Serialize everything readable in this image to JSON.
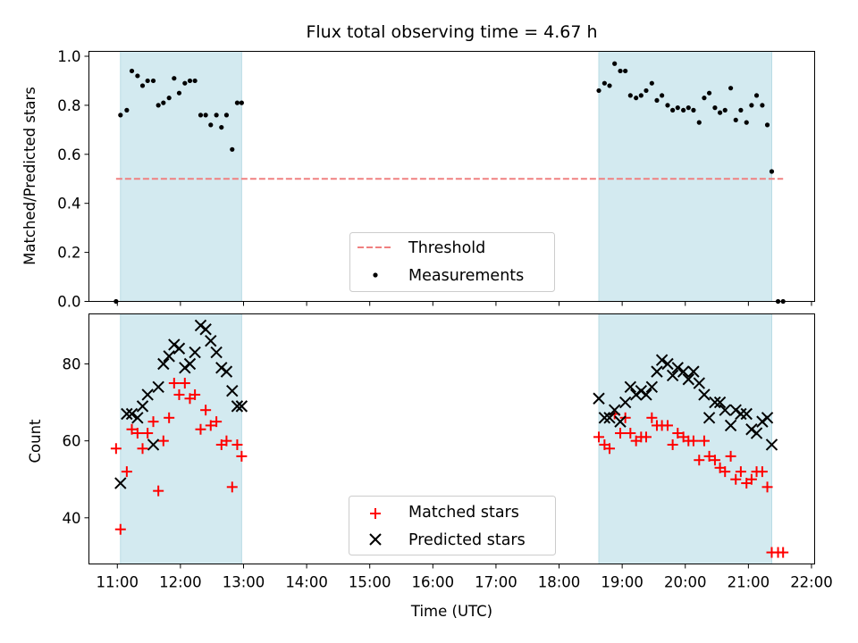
{
  "chart_data": {
    "title": "Flux total observing time = 4.67 h",
    "xlabel": "Time (UTC)",
    "x_ticks": [
      "11:00",
      "12:00",
      "13:00",
      "14:00",
      "15:00",
      "16:00",
      "17:00",
      "18:00",
      "19:00",
      "20:00",
      "21:00",
      "22:00"
    ],
    "x_range_hours": [
      10.55,
      22.05
    ],
    "observing_windows_hours": [
      [
        11.05,
        12.97
      ],
      [
        18.63,
        21.37
      ]
    ],
    "colors": {
      "window": "#d3eaf0",
      "window_edge": "#b9dbe5",
      "threshold": "#f08080",
      "matched": "#ff0000",
      "predicted": "#000000"
    },
    "panels": [
      {
        "type": "scatter",
        "ylabel": "Matched/Predicted stars",
        "ylim": [
          0.0,
          1.02
        ],
        "yticks": [
          "0.0",
          "0.2",
          "0.4",
          "0.6",
          "0.8",
          "1.0"
        ],
        "yticks_values": [
          0.0,
          0.2,
          0.4,
          0.6,
          0.8,
          1.0
        ],
        "threshold": {
          "name": "Threshold",
          "value": 0.5,
          "x_range": [
            10.98,
            21.55
          ]
        },
        "legend": {
          "position": "lower center",
          "entries": [
            "Threshold",
            "Measurements"
          ]
        },
        "series": [
          {
            "name": "Measurements",
            "x": [
              10.98,
              11.05,
              11.15,
              11.23,
              11.32,
              11.4,
              11.48,
              11.57,
              11.65,
              11.73,
              11.82,
              11.9,
              11.98,
              12.07,
              12.15,
              12.23,
              12.32,
              12.4,
              12.48,
              12.57,
              12.65,
              12.73,
              12.82,
              12.9,
              12.97,
              18.63,
              18.72,
              18.8,
              18.88,
              18.97,
              19.05,
              19.13,
              19.22,
              19.3,
              19.38,
              19.47,
              19.55,
              19.63,
              19.72,
              19.8,
              19.88,
              19.97,
              20.05,
              20.13,
              20.22,
              20.3,
              20.38,
              20.47,
              20.55,
              20.63,
              20.72,
              20.8,
              20.88,
              20.97,
              21.05,
              21.13,
              21.22,
              21.3,
              21.37,
              21.47,
              21.55
            ],
            "y": [
              0.0,
              0.76,
              0.78,
              0.94,
              0.92,
              0.88,
              0.9,
              0.9,
              0.8,
              0.81,
              0.83,
              0.91,
              0.85,
              0.89,
              0.9,
              0.9,
              0.76,
              0.76,
              0.72,
              0.76,
              0.71,
              0.76,
              0.62,
              0.81,
              0.81,
              0.86,
              0.89,
              0.88,
              0.97,
              0.94,
              0.94,
              0.84,
              0.83,
              0.84,
              0.86,
              0.89,
              0.82,
              0.84,
              0.8,
              0.78,
              0.79,
              0.78,
              0.79,
              0.78,
              0.73,
              0.83,
              0.85,
              0.79,
              0.77,
              0.78,
              0.87,
              0.74,
              0.78,
              0.73,
              0.8,
              0.84,
              0.8,
              0.72,
              0.53,
              0.0,
              0.0
            ]
          }
        ]
      },
      {
        "type": "scatter",
        "ylabel": "Count",
        "ylim": [
          28,
          93
        ],
        "yticks": [
          "40",
          "60",
          "80"
        ],
        "yticks_values": [
          40,
          60,
          80
        ],
        "legend": {
          "position": "lower center",
          "entries": [
            "Matched stars",
            "Predicted stars"
          ]
        },
        "series": [
          {
            "name": "Matched stars",
            "marker": "+",
            "x": [
              10.98,
              11.05,
              11.15,
              11.23,
              11.32,
              11.4,
              11.48,
              11.57,
              11.65,
              11.73,
              11.82,
              11.9,
              11.98,
              12.07,
              12.15,
              12.23,
              12.32,
              12.4,
              12.48,
              12.57,
              12.65,
              12.73,
              12.82,
              12.9,
              12.97,
              18.63,
              18.72,
              18.8,
              18.88,
              18.97,
              19.05,
              19.13,
              19.22,
              19.3,
              19.38,
              19.47,
              19.55,
              19.63,
              19.72,
              19.8,
              19.88,
              19.97,
              20.05,
              20.13,
              20.22,
              20.3,
              20.38,
              20.47,
              20.55,
              20.63,
              20.72,
              20.8,
              20.88,
              20.97,
              21.05,
              21.13,
              21.22,
              21.3,
              21.37,
              21.47,
              21.55
            ],
            "y": [
              58,
              37,
              52,
              63,
              62,
              58,
              62,
              65,
              47,
              60,
              66,
              75,
              72,
              75,
              71,
              72,
              63,
              68,
              64,
              65,
              59,
              60,
              48,
              59,
              56,
              61,
              59,
              58,
              67,
              62,
              66,
              62,
              60,
              61,
              61,
              66,
              64,
              64,
              64,
              59,
              62,
              61,
              60,
              60,
              55,
              60,
              56,
              55,
              53,
              52,
              56,
              50,
              52,
              49,
              50,
              52,
              52,
              48,
              31,
              31,
              31
            ]
          },
          {
            "name": "Predicted stars",
            "marker": "x",
            "x": [
              11.05,
              11.15,
              11.23,
              11.32,
              11.4,
              11.48,
              11.57,
              11.65,
              11.73,
              11.82,
              11.9,
              11.98,
              12.07,
              12.15,
              12.23,
              12.32,
              12.4,
              12.48,
              12.57,
              12.65,
              12.73,
              12.82,
              12.9,
              12.97,
              18.63,
              18.72,
              18.8,
              18.88,
              18.97,
              19.05,
              19.13,
              19.22,
              19.3,
              19.38,
              19.47,
              19.55,
              19.63,
              19.72,
              19.8,
              19.88,
              19.97,
              20.05,
              20.13,
              20.22,
              20.3,
              20.38,
              20.47,
              20.55,
              20.63,
              20.72,
              20.8,
              20.88,
              20.97,
              21.05,
              21.13,
              21.22,
              21.3,
              21.37
            ],
            "y": [
              49,
              67,
              67,
              66,
              69,
              72,
              59,
              74,
              80,
              82,
              85,
              84,
              79,
              80,
              83,
              90,
              89,
              86,
              83,
              79,
              78,
              73,
              69,
              69,
              71,
              66,
              66,
              68,
              65,
              70,
              74,
              72,
              73,
              72,
              74,
              78,
              81,
              80,
              77,
              79,
              78,
              76,
              78,
              75,
              72,
              66,
              70,
              70,
              68,
              64,
              68,
              67,
              67,
              63,
              62,
              65,
              66,
              59
            ]
          }
        ]
      }
    ]
  }
}
